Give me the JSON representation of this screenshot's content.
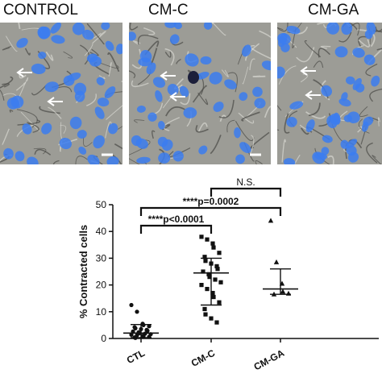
{
  "panels": [
    {
      "title": "CONTROL",
      "arrow_count": 2,
      "has_scale_bar": true
    },
    {
      "title": "CM-C",
      "arrow_count": 2,
      "has_scale_bar": true
    },
    {
      "title": "CM-GA",
      "arrow_count": 2,
      "has_scale_bar": false
    }
  ],
  "colors": {
    "nuclei": "#3b7cf0",
    "background": "#9c9c96",
    "arrow": "#ffffff",
    "plot": "#111111"
  },
  "chart_data": {
    "type": "scatter",
    "title": "",
    "xlabel": "",
    "ylabel": "% Contracted cells",
    "ylim": [
      0,
      50
    ],
    "yticks": [
      "0",
      "10",
      "20",
      "30",
      "40",
      "50"
    ],
    "categories": [
      "CTL",
      "CM-C",
      "CM-GA"
    ],
    "series": [
      {
        "marker": "circle",
        "category": "CTL",
        "values": [
          12.5,
          10.0,
          5.5,
          5.0,
          4.6,
          4.2,
          3.8,
          3.5,
          3.2,
          2.9,
          2.6,
          2.3,
          2.0,
          1.8,
          1.6,
          1.4,
          1.2,
          1.0,
          0.8,
          0.6,
          0.4,
          0.2
        ],
        "mean": 2.0,
        "err_low": 0.3,
        "err_high": 5.2
      },
      {
        "marker": "square",
        "category": "CM-C",
        "values": [
          38.0,
          37.0,
          35.5,
          34.0,
          32.0,
          30.5,
          29.0,
          28.0,
          27.0,
          26.0,
          25.0,
          24.0,
          23.0,
          22.0,
          21.0,
          20.0,
          18.5,
          17.0,
          15.5,
          13.5,
          11.0,
          9.0,
          7.5,
          6.0
        ],
        "mean": 24.5,
        "err_low": 12.5,
        "err_high": 30.0
      },
      {
        "marker": "triangle",
        "category": "CM-GA",
        "values": [
          44.0,
          28.5,
          20.5,
          17.5,
          16.8,
          16.5
        ],
        "mean": 18.5,
        "err_low": 16.5,
        "err_high": 26.0
      }
    ],
    "annotations": [
      {
        "text": "****p<0.0001",
        "from": "CTL",
        "to": "CM-C"
      },
      {
        "text": "****p=0.0002",
        "from": "CTL",
        "to": "CM-GA"
      },
      {
        "text": "N.S.",
        "from": "CM-C",
        "to": "CM-GA"
      }
    ]
  }
}
